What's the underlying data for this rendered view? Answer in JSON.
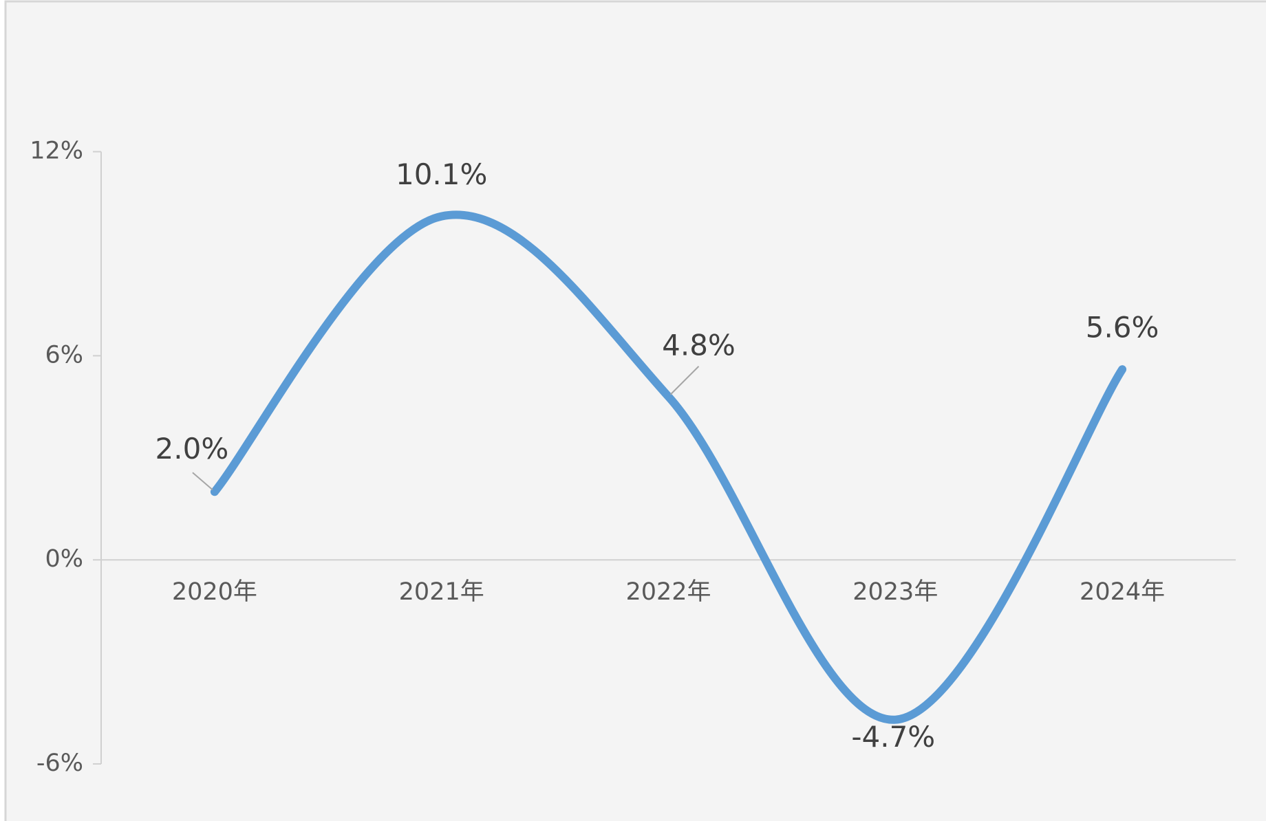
{
  "chart_data": {
    "type": "line",
    "categories": [
      "2020年",
      "2021年",
      "2022年",
      "2023年",
      "2024年"
    ],
    "series": [
      {
        "color": "#5b9bd5",
        "values": [
          2.0,
          10.1,
          4.8,
          -4.7,
          5.6
        ],
        "value_labels": [
          "2.0%",
          "10.1%",
          "4.8%",
          "-4.7%",
          "5.6%"
        ]
      }
    ],
    "ylim": [
      -6,
      12
    ],
    "yticks": [
      {
        "value": -6,
        "label": "-6%"
      },
      {
        "value": 0,
        "label": "0%"
      },
      {
        "value": 6,
        "label": "6%"
      },
      {
        "value": 12,
        "label": "12%"
      }
    ],
    "smooth": true
  }
}
